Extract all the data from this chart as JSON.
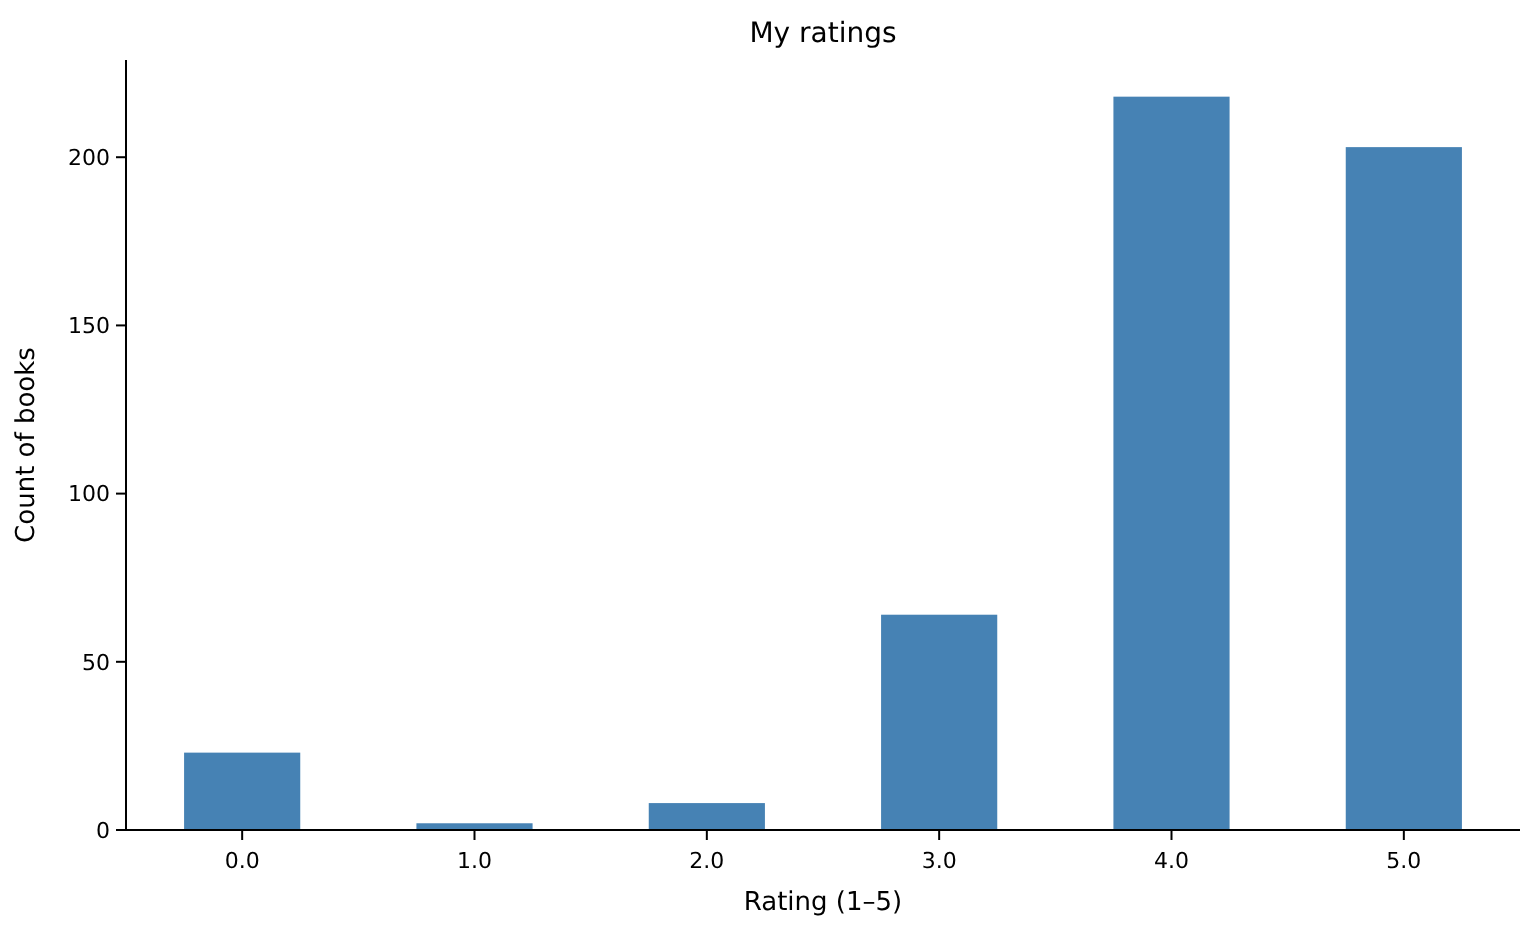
{
  "chart_data": {
    "type": "bar",
    "title": "My ratings",
    "xlabel": "Rating (1–5)",
    "ylabel": "Count of books",
    "categories": [
      "0.0",
      "1.0",
      "2.0",
      "3.0",
      "4.0",
      "5.0"
    ],
    "values": [
      23,
      2,
      8,
      64,
      218,
      203
    ],
    "color": "#4682b4",
    "ylim": [
      0,
      228.9
    ],
    "yticks": [
      0,
      50,
      100,
      150,
      200
    ]
  }
}
